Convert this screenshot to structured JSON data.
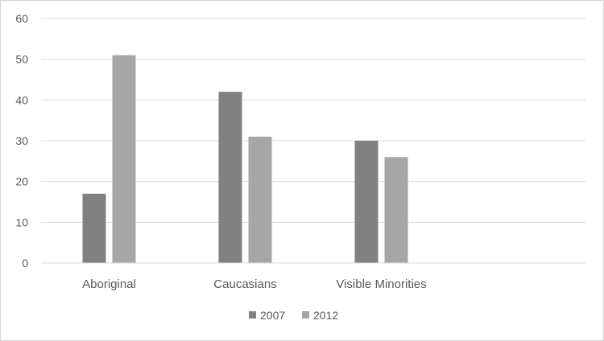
{
  "chart_data": {
    "type": "bar",
    "title": "",
    "xlabel": "",
    "ylabel": "",
    "categories": [
      "Aboriginal",
      "Caucasians",
      "Visible Minorities",
      ""
    ],
    "series": [
      {
        "name": "2007",
        "values": [
          17,
          42,
          30,
          null
        ],
        "color": "#808080"
      },
      {
        "name": "2012",
        "values": [
          51,
          31,
          26,
          null
        ],
        "color": "#a6a6a6"
      }
    ],
    "ylim": [
      0,
      60
    ],
    "yticks": [
      "0",
      "10",
      "20",
      "30",
      "40",
      "50",
      "60"
    ],
    "grid": true,
    "legend": "bottom-center"
  }
}
